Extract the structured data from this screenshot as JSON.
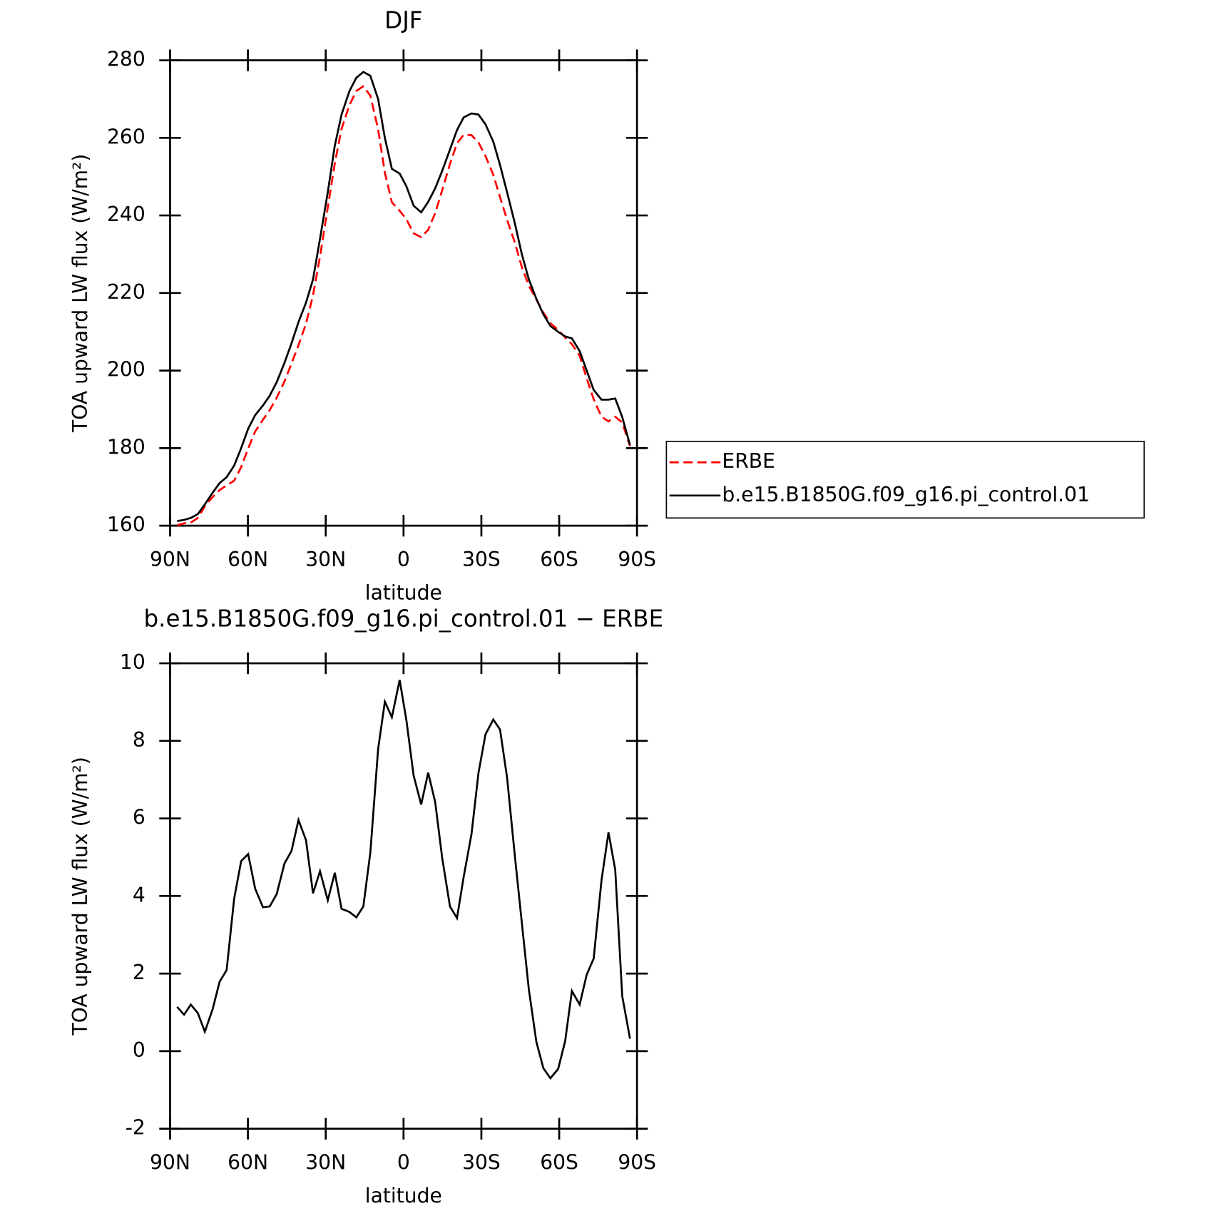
{
  "chart_data": [
    {
      "type": "line",
      "title": "DJF",
      "ylabel": "TOA upward LW flux (W/m²)",
      "xlabel": "latitude",
      "x": [
        87.3,
        84.6,
        82,
        79.3,
        76.6,
        73.6,
        70.9,
        68.2,
        65.3,
        62.6,
        59.9,
        57.2,
        54.2,
        51.6,
        48.9,
        45.9,
        43.2,
        40.5,
        37.6,
        34.9,
        32.2,
        29.2,
        26.5,
        23.9,
        20.9,
        18.2,
        15.5,
        12.8,
        9.8,
        7.2,
        4.5,
        1.5,
        -1.1,
        -3.9,
        -6.8,
        -9.5,
        -12.2,
        -14.9,
        -17.9,
        -20.6,
        -23.2,
        -26.2,
        -28.9,
        -31.6,
        -34.6,
        -37.2,
        -39.9,
        -42.9,
        -45.6,
        -48.3,
        -51.2,
        -53.9,
        -56.6,
        -59.6,
        -62.3,
        -64.9,
        -67.9,
        -70.6,
        -73.3,
        -76.3,
        -79,
        -81.6,
        -84.3,
        -87.3
      ],
      "series": [
        {
          "name": "ERBE",
          "color": "#ff0000",
          "dash": true,
          "values": [
            160.1,
            160.6,
            160.8,
            162.0,
            165.0,
            167.4,
            169.2,
            170.4,
            171.6,
            175.1,
            179.9,
            184.3,
            187.3,
            189.8,
            193.0,
            197.2,
            201.8,
            206.5,
            212.1,
            219.4,
            229.4,
            242.1,
            253.4,
            262.3,
            268.4,
            272.1,
            273.3,
            270.9,
            262.2,
            251.0,
            243.4,
            241.2,
            239.0,
            235.4,
            234.4,
            236.3,
            240.6,
            246.5,
            253.3,
            258.6,
            260.8,
            260.7,
            258.8,
            255.3,
            250.5,
            244.7,
            238.9,
            233.0,
            226.7,
            221.9,
            218.3,
            214.9,
            212.2,
            210.5,
            208.5,
            206.8,
            203.8,
            198.0,
            192.6,
            188.1,
            186.9,
            188.1,
            186.6,
            180.5
          ]
        },
        {
          "name": "b.e15.B1850G.f09_g16.pi_control.01",
          "color": "#000000",
          "dash": false,
          "values": [
            161.2,
            161.5,
            162,
            163,
            165.5,
            168.5,
            171,
            172.5,
            175.5,
            180,
            185,
            188.5,
            191,
            193.5,
            197,
            202,
            207,
            212.5,
            217.5,
            223.5,
            234,
            246,
            258,
            266,
            272,
            275.5,
            277,
            276,
            270,
            260,
            252,
            250.8,
            247.5,
            242.5,
            240.8,
            243.5,
            247,
            251.5,
            257,
            262,
            265.3,
            266.3,
            266,
            263.5,
            259,
            253,
            246,
            238,
            230,
            223.5,
            218.5,
            214.5,
            211.5,
            210,
            208.8,
            208.3,
            205,
            200,
            195,
            192.5,
            192.5,
            192.8,
            188,
            180.8
          ]
        }
      ],
      "xlim": [
        90,
        -90
      ],
      "xticks": [
        {
          "value": 90,
          "label": "90N"
        },
        {
          "value": 60,
          "label": "60N"
        },
        {
          "value": 30,
          "label": "30N"
        },
        0,
        {
          "value": -30,
          "label": "30S"
        },
        {
          "value": -60,
          "label": "60S"
        },
        {
          "value": -90,
          "label": "90S"
        }
      ],
      "ylim": [
        160,
        280
      ],
      "yticks": [
        160,
        180,
        200,
        220,
        240,
        260,
        280
      ],
      "legend": "right"
    },
    {
      "type": "line",
      "title": "b.e15.B1850G.f09_g16.pi_control.01 − ERBE",
      "ylabel": "TOA upward LW flux (W/m²)",
      "xlabel": "latitude",
      "x": [
        87.3,
        84.6,
        82,
        79.3,
        76.6,
        73.6,
        70.9,
        68.2,
        65.3,
        62.6,
        59.9,
        57.2,
        54.2,
        51.6,
        48.9,
        45.9,
        43.2,
        40.5,
        37.6,
        34.9,
        32.2,
        29.2,
        26.5,
        23.9,
        20.9,
        18.2,
        15.5,
        12.8,
        9.8,
        7.2,
        4.5,
        1.5,
        -1.1,
        -3.9,
        -6.8,
        -9.5,
        -12.2,
        -14.9,
        -17.9,
        -20.6,
        -23.2,
        -26.2,
        -28.9,
        -31.6,
        -34.6,
        -37.2,
        -39.9,
        -42.9,
        -45.6,
        -48.3,
        -51.2,
        -53.9,
        -56.6,
        -59.6,
        -62.3,
        -64.9,
        -67.9,
        -70.6,
        -73.3,
        -76.3,
        -79,
        -81.6,
        -84.3,
        -87.3
      ],
      "values": [
        1.14,
        0.94,
        1.2,
        0.98,
        0.5,
        1.08,
        1.79,
        2.09,
        3.93,
        4.9,
        5.08,
        4.19,
        3.71,
        3.73,
        4.05,
        4.84,
        5.16,
        5.96,
        5.44,
        4.07,
        4.64,
        3.89,
        4.6,
        3.67,
        3.59,
        3.45,
        3.73,
        5.12,
        7.79,
        9.01,
        8.61,
        9.57,
        8.53,
        7.1,
        6.36,
        7.18,
        6.42,
        4.98,
        3.73,
        3.43,
        4.5,
        5.6,
        7.18,
        8.17,
        8.55,
        8.29,
        7.06,
        5.04,
        3.31,
        1.59,
        0.24,
        -0.44,
        -0.7,
        -0.46,
        0.26,
        1.55,
        1.2,
        1.97,
        2.39,
        4.4,
        5.64,
        4.68,
        1.42,
        0.32
      ],
      "color": "#000000",
      "xlim": [
        90,
        -90
      ],
      "xticks": [
        {
          "value": 90,
          "label": "90N"
        },
        {
          "value": 60,
          "label": "60N"
        },
        {
          "value": 30,
          "label": "30N"
        },
        0,
        {
          "value": -30,
          "label": "30S"
        },
        {
          "value": -60,
          "label": "60S"
        },
        {
          "value": -90,
          "label": "90S"
        }
      ],
      "ylim": [
        -2,
        10
      ],
      "yticks": [
        -2,
        0,
        2,
        4,
        6,
        8,
        10
      ]
    }
  ]
}
